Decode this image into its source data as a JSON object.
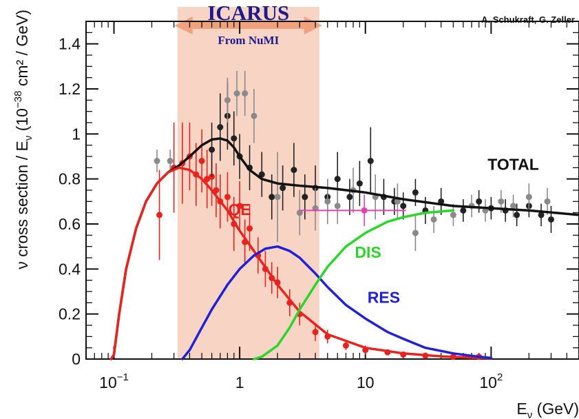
{
  "chart_data": {
    "type": "line",
    "credit": "A. Schukraft, G. Zeller",
    "xlabel": {
      "main": "E",
      "sub": "ν",
      "rest": " (GeV)"
    },
    "ylabel": {
      "pre": "ν cross section / E",
      "sub": "ν",
      "mid": " (10",
      "sup": "−38",
      "post": " cm² / GeV)"
    },
    "x_scale": "log",
    "xlim": [
      0.06,
      500
    ],
    "ylim": [
      0,
      1.5
    ],
    "x_ticks": [
      {
        "value": 0.1,
        "base": "10",
        "exp": "−1"
      },
      {
        "value": 1,
        "base": "1",
        "exp": ""
      },
      {
        "value": 10,
        "base": "10",
        "exp": ""
      },
      {
        "value": 100,
        "base": "10",
        "exp": "2"
      }
    ],
    "y_ticks": [
      {
        "value": 0,
        "label": "0"
      },
      {
        "value": 0.2,
        "label": "0.2"
      },
      {
        "value": 0.4,
        "label": "0.4"
      },
      {
        "value": 0.6,
        "label": "0.6"
      },
      {
        "value": 0.8,
        "label": "0.8"
      },
      {
        "value": 1.0,
        "label": "1"
      },
      {
        "value": 1.2,
        "label": "1.2"
      },
      {
        "value": 1.4,
        "label": "1.4"
      }
    ],
    "band": {
      "x_range": [
        0.32,
        4.3
      ],
      "title": "ICARUS",
      "subtitle": "From NuMI",
      "color": "#f6c6b0"
    },
    "series": [
      {
        "name": "TOTAL",
        "color": "#111111",
        "x": [
          0.095,
          0.1,
          0.11,
          0.125,
          0.15,
          0.18,
          0.22,
          0.27,
          0.33,
          0.4,
          0.5,
          0.6,
          0.7,
          0.8,
          0.9,
          1.0,
          1.2,
          1.5,
          2.0,
          3.0,
          5.0,
          10,
          20,
          50,
          100,
          200,
          500
        ],
        "values": [
          0.0,
          0.02,
          0.2,
          0.4,
          0.58,
          0.7,
          0.78,
          0.83,
          0.86,
          0.9,
          0.95,
          0.975,
          0.98,
          0.97,
          0.94,
          0.9,
          0.84,
          0.8,
          0.78,
          0.77,
          0.76,
          0.74,
          0.71,
          0.68,
          0.67,
          0.66,
          0.64
        ],
        "label_at": [
          150,
          0.84
        ]
      },
      {
        "name": "QE",
        "color": "#e8231d",
        "x": [
          0.095,
          0.1,
          0.11,
          0.125,
          0.15,
          0.18,
          0.22,
          0.27,
          0.33,
          0.4,
          0.5,
          0.6,
          0.8,
          1.0,
          1.5,
          2.0,
          3.0,
          5.0,
          10,
          20,
          40,
          70,
          100
        ],
        "values": [
          0.0,
          0.02,
          0.2,
          0.4,
          0.58,
          0.7,
          0.78,
          0.83,
          0.85,
          0.84,
          0.8,
          0.75,
          0.66,
          0.57,
          0.43,
          0.33,
          0.21,
          0.11,
          0.05,
          0.025,
          0.012,
          0.006,
          0.004
        ],
        "label_at": [
          1.0,
          0.64
        ]
      },
      {
        "name": "RES",
        "color": "#2020d8",
        "x": [
          0.35,
          0.4,
          0.5,
          0.6,
          0.8,
          1.0,
          1.3,
          1.6,
          2.0,
          2.5,
          3.0,
          4.0,
          5.0,
          7.0,
          10,
          15,
          20,
          30,
          50,
          80,
          100
        ],
        "values": [
          0.0,
          0.04,
          0.14,
          0.22,
          0.33,
          0.4,
          0.46,
          0.49,
          0.5,
          0.48,
          0.45,
          0.38,
          0.32,
          0.24,
          0.18,
          0.12,
          0.09,
          0.05,
          0.025,
          0.01,
          0.005
        ],
        "label_at": [
          14,
          0.25
        ]
      },
      {
        "name": "DIS",
        "color": "#2ad629",
        "x": [
          1.3,
          1.5,
          2.0,
          2.5,
          3.0,
          4.0,
          5.0,
          7.0,
          10,
          15,
          20,
          30,
          50
        ],
        "values": [
          0.0,
          0.01,
          0.06,
          0.14,
          0.22,
          0.33,
          0.41,
          0.5,
          0.56,
          0.61,
          0.63,
          0.65,
          0.66
        ],
        "label_at": [
          10.5,
          0.45
        ]
      }
    ],
    "data_points": [
      {
        "color": "#e8231d",
        "x": [
          0.23,
          0.3,
          0.35,
          0.4,
          0.45,
          0.5,
          0.55,
          0.6,
          0.65,
          0.7,
          0.8,
          0.9,
          1.0,
          1.1,
          1.2,
          1.4,
          1.6,
          1.8,
          2.0,
          2.5,
          3.0,
          4.0,
          5.0,
          7.0,
          10,
          15,
          20,
          30,
          50,
          80
        ],
        "values": [
          0.64,
          0.85,
          0.87,
          0.9,
          0.82,
          0.88,
          0.8,
          0.81,
          0.75,
          0.7,
          0.72,
          0.6,
          0.68,
          0.52,
          0.58,
          0.46,
          0.4,
          0.36,
          0.34,
          0.25,
          0.2,
          0.12,
          0.1,
          0.06,
          0.04,
          0.03,
          0.02,
          0.015,
          0.01,
          0.01
        ],
        "err": [
          0.2,
          0.2,
          0.18,
          0.15,
          0.14,
          0.14,
          0.13,
          0.13,
          0.12,
          0.12,
          0.11,
          0.12,
          0.11,
          0.1,
          0.1,
          0.08,
          0.08,
          0.07,
          0.07,
          0.06,
          0.05,
          0.04,
          0.03,
          0.02,
          0.02,
          0.01,
          0.01,
          0.01,
          0.01,
          0.01
        ]
      },
      {
        "color": "#222222",
        "x": [
          0.6,
          0.7,
          0.8,
          0.9,
          1.0,
          1.2,
          1.5,
          1.8,
          2.2,
          2.7,
          3.3,
          4.0,
          5.0,
          6.0,
          7.5,
          9.0,
          11,
          14,
          17,
          20,
          25,
          30,
          40,
          60,
          80,
          100,
          130,
          160,
          200,
          250,
          300
        ],
        "values": [
          0.93,
          1.03,
          1.08,
          0.98,
          0.9,
          0.85,
          0.82,
          0.72,
          0.76,
          0.84,
          0.72,
          0.76,
          0.72,
          0.8,
          0.72,
          0.78,
          0.88,
          0.72,
          0.7,
          0.68,
          0.74,
          0.66,
          0.7,
          0.66,
          0.7,
          0.67,
          0.66,
          0.64,
          0.68,
          0.64,
          0.62
        ],
        "err": [
          0.12,
          0.15,
          0.15,
          0.12,
          0.1,
          0.1,
          0.1,
          0.1,
          0.1,
          0.12,
          0.1,
          0.1,
          0.08,
          0.12,
          0.08,
          0.1,
          0.15,
          0.08,
          0.06,
          0.06,
          0.06,
          0.06,
          0.06,
          0.05,
          0.05,
          0.05,
          0.05,
          0.05,
          0.05,
          0.05,
          0.06
        ]
      },
      {
        "color": "#8a8a8a",
        "x": [
          0.22,
          0.28,
          0.8,
          0.95,
          1.1,
          1.3,
          2.0,
          3.0,
          4.0,
          5.0,
          6.0,
          8.0,
          12,
          18,
          25,
          35,
          50,
          70,
          90,
          120,
          150,
          200,
          280
        ],
        "values": [
          0.88,
          0.88,
          1.15,
          1.18,
          1.18,
          1.08,
          0.72,
          0.65,
          0.67,
          0.7,
          0.68,
          0.75,
          0.72,
          0.7,
          0.56,
          0.62,
          0.64,
          0.68,
          0.66,
          0.7,
          0.68,
          0.72,
          0.7
        ],
        "err": [
          0.05,
          0.05,
          0.1,
          0.1,
          0.1,
          0.12,
          0.2,
          0.1,
          0.1,
          0.1,
          0.08,
          0.1,
          0.1,
          0.08,
          0.08,
          0.06,
          0.05,
          0.05,
          0.05,
          0.05,
          0.05,
          0.06,
          0.06
        ]
      },
      {
        "color": "#e23fb4",
        "x": [
          9.8
        ],
        "values": [
          0.66
        ],
        "err": [
          0.07
        ],
        "xerr": [
          3.0,
          21.0
        ]
      }
    ]
  }
}
